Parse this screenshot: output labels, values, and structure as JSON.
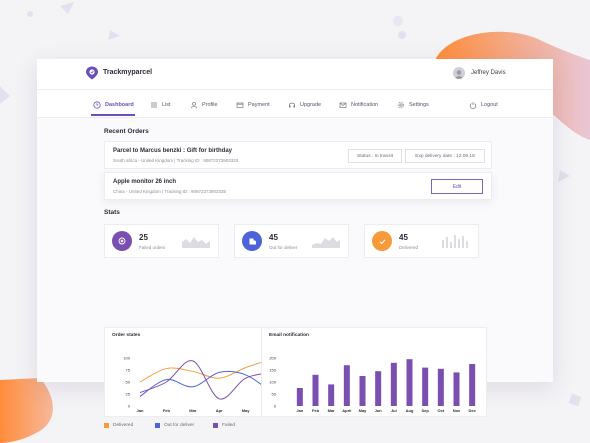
{
  "app": {
    "brand": "Trackmyparcel",
    "user": "Jeffrey Davis"
  },
  "nav": [
    {
      "label": "Dashboard",
      "active": true
    },
    {
      "label": "List"
    },
    {
      "label": "Profile"
    },
    {
      "label": "Payment"
    },
    {
      "label": "Upgrade"
    },
    {
      "label": "Notification"
    },
    {
      "label": "Settings"
    },
    {
      "label": "Logout"
    }
  ],
  "recent": {
    "title": "Recent Orders",
    "orders": [
      {
        "title": "Parcel to Marcus benzki : Gift for birthday",
        "sub": "South africa - United Kingdom  |  Tracking ID : 90872373903333",
        "status": "Status : In transit",
        "exp": "Exp delivery date : 12.09.18"
      },
      {
        "title": "Apple monitor 26 inch",
        "sub": "China - United Kingdom  |  Tracking ID : 90872373903335",
        "action": "Edit"
      }
    ]
  },
  "stats": {
    "title": "Stats",
    "cards": [
      {
        "value": "25",
        "label": "Failed orders",
        "color": "#7b4fb0"
      },
      {
        "value": "45",
        "label": "Out for deliver",
        "color": "#4f63d8"
      },
      {
        "value": "45",
        "label": "Delivered",
        "color": "#f79a3a"
      }
    ]
  },
  "chart_data": [
    {
      "type": "line",
      "title": "Order states",
      "categories": [
        "Jan",
        "Feb",
        "Mar",
        "Apr",
        "May",
        "Jun"
      ],
      "yticks": [
        0,
        25,
        50,
        75,
        100
      ],
      "ylim": [
        0,
        100
      ],
      "series": [
        {
          "name": "Delivered",
          "color": "#f79a3a",
          "values": [
            50,
            78,
            72,
            58,
            80,
            98
          ]
        },
        {
          "name": "Out for deliver",
          "color": "#4f63d8",
          "values": [
            20,
            55,
            40,
            70,
            65,
            28
          ]
        },
        {
          "name": "Failed",
          "color": "#7b4fb0",
          "values": [
            28,
            50,
            94,
            15,
            58,
            70
          ]
        }
      ]
    },
    {
      "type": "bar",
      "title": "Email notification",
      "categories": [
        "Jan",
        "Feb",
        "Mar",
        "April",
        "May",
        "Jun",
        "Jul",
        "Aug",
        "Sep",
        "Oct",
        "Nov",
        "Dec"
      ],
      "values": [
        75,
        130,
        90,
        170,
        125,
        145,
        180,
        195,
        160,
        155,
        140,
        175
      ],
      "yticks": [
        0,
        50,
        100,
        150,
        200
      ],
      "ylim": [
        0,
        200
      ],
      "color": "#7b4fb0"
    }
  ]
}
